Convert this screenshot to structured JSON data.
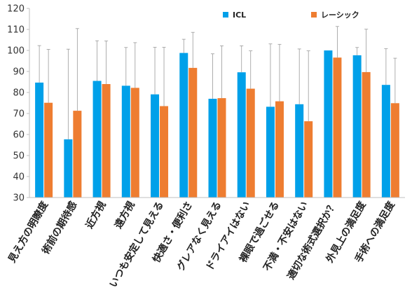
{
  "chart_data": {
    "type": "bar",
    "categories": [
      "見え方の明瞭度",
      "術前の期待感",
      "近方視",
      "遠方視",
      "いつも安定して見える",
      "快適さ・便利さ",
      "グレアなく見える",
      "ドライアイはない",
      "裸眼で過ごせる",
      "不満・不安はない",
      "適切な術式選択か？",
      "外見上の満足度",
      "手術への満足度"
    ],
    "series": [
      {
        "name": "ICL",
        "color": "#00A0E9",
        "values": [
          84.7,
          57.7,
          85.5,
          83.2,
          79.1,
          98.8,
          77.0,
          89.6,
          73.2,
          74.4,
          100.0,
          97.7,
          83.6
        ],
        "error_upper": [
          102.3,
          100.6,
          104.6,
          101.4,
          101.5,
          105.3,
          98.4,
          102.2,
          103.1,
          100.7,
          100.0,
          101.4,
          100.8
        ]
      },
      {
        "name": "レーシック",
        "color": "#EE7D31",
        "values": [
          75.1,
          71.3,
          84.0,
          82.2,
          73.5,
          91.7,
          77.3,
          81.8,
          75.8,
          66.3,
          96.6,
          89.7,
          74.9
        ],
        "error_upper": [
          100.5,
          110.4,
          104.5,
          103.7,
          101.5,
          108.6,
          102.2,
          99.8,
          102.9,
          99.8,
          111.4,
          110.1,
          96.3
        ]
      }
    ],
    "ylim": [
      30,
      120
    ],
    "yticks": [
      "30",
      "40",
      "50",
      "60",
      "70",
      "80",
      "90",
      "100",
      "110",
      "120"
    ],
    "grid": false,
    "error_bars": true,
    "legend_position": "top-right"
  }
}
